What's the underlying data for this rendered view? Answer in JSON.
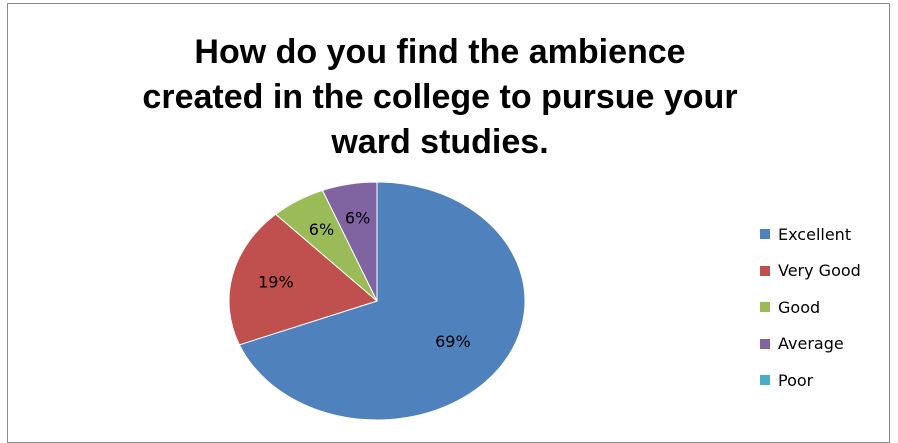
{
  "chart_data": {
    "type": "pie",
    "title_lines": [
      "How do you find the ambience",
      "created in the college to pursue your",
      "ward studies."
    ],
    "slices": [
      {
        "label": "Excellent",
        "value": 69,
        "data_label": "69%",
        "color": "#4f81bd"
      },
      {
        "label": "Very Good",
        "value": 19,
        "data_label": "19%",
        "color": "#c0504d"
      },
      {
        "label": "Good",
        "value": 6,
        "data_label": "6%",
        "color": "#9bbb59"
      },
      {
        "label": "Average",
        "value": 6,
        "data_label": "6%",
        "color": "#8064a2"
      },
      {
        "label": "Poor",
        "value": 0,
        "data_label": "",
        "color": "#4bacc6"
      }
    ],
    "legend_position": "right"
  }
}
